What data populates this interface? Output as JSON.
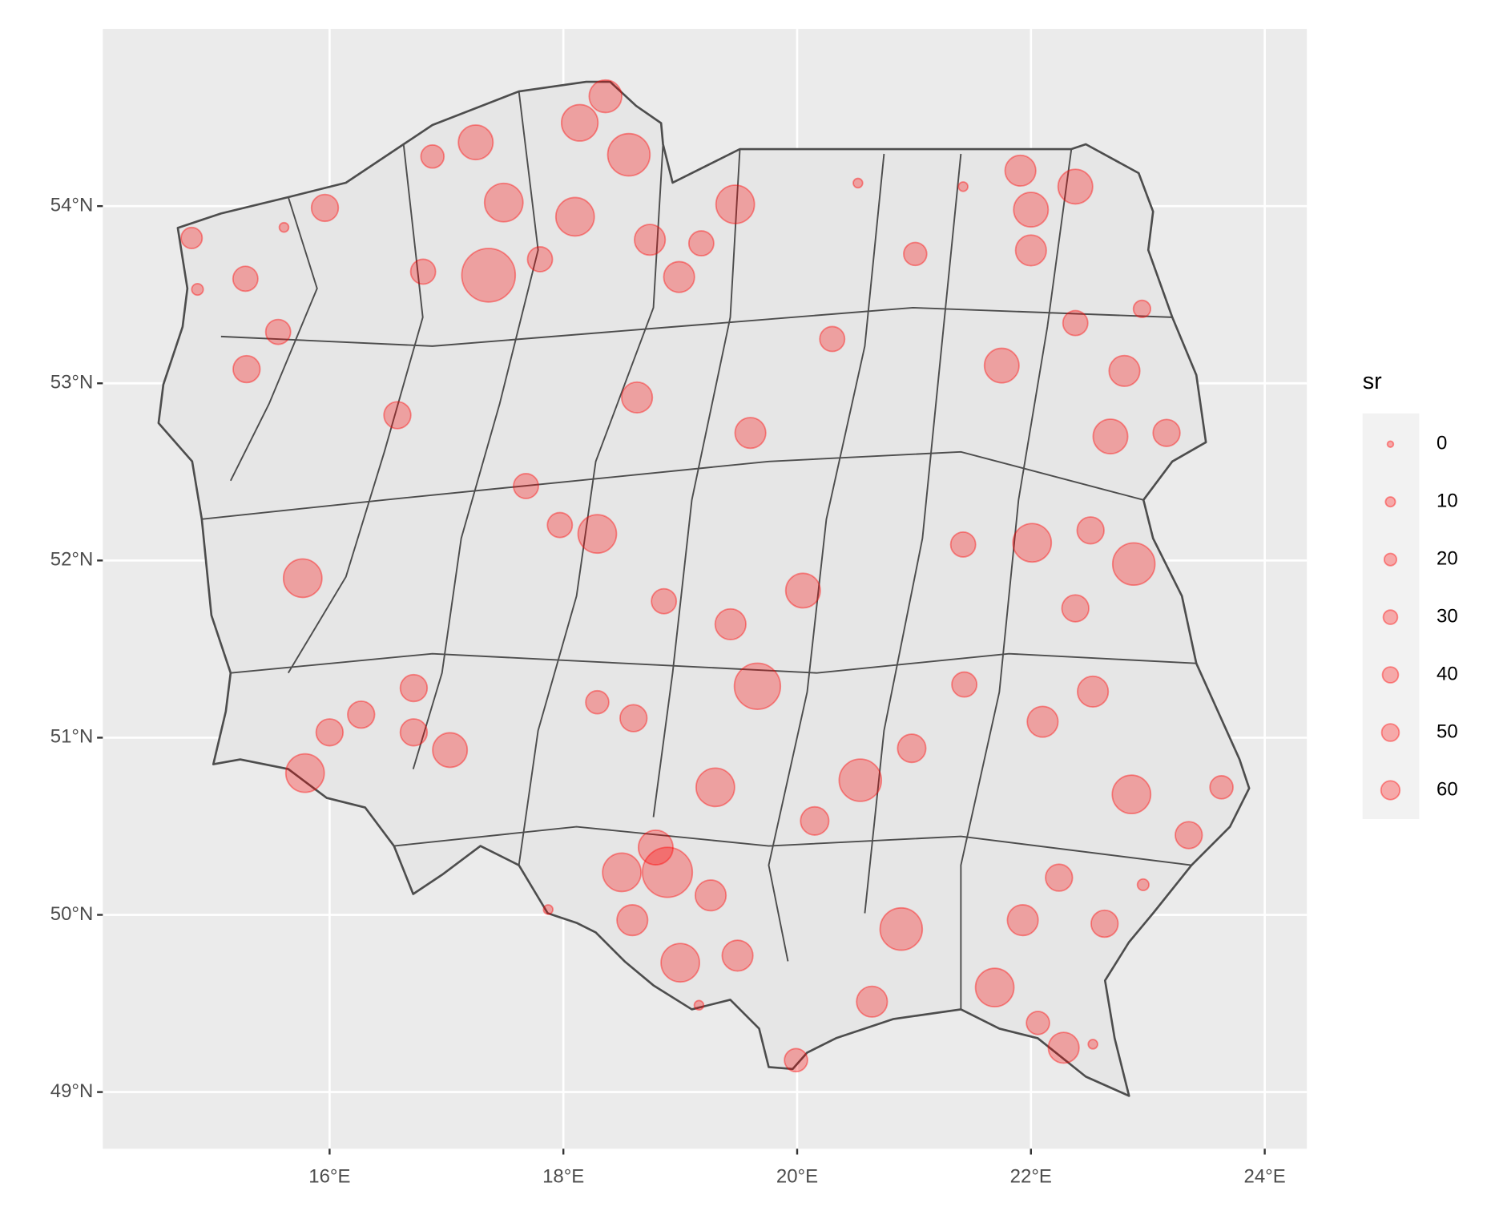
{
  "chart_data": {
    "type": "map",
    "xlim": [
      14.06,
      24.36
    ],
    "ylim": [
      48.68,
      55.0
    ],
    "xticks": [
      {
        "value": 16,
        "label": "16°E"
      },
      {
        "value": 18,
        "label": "18°E"
      },
      {
        "value": 20,
        "label": "20°E"
      },
      {
        "value": 22,
        "label": "22°E"
      },
      {
        "value": 24,
        "label": "24°E"
      }
    ],
    "yticks": [
      {
        "value": 49,
        "label": "49°N"
      },
      {
        "value": 50,
        "label": "50°N"
      },
      {
        "value": 51,
        "label": "51°N"
      },
      {
        "value": 52,
        "label": "52°N"
      },
      {
        "value": 53,
        "label": "53°N"
      },
      {
        "value": 54,
        "label": "54°N"
      }
    ],
    "grid": true,
    "color": "red",
    "alpha": 0.3,
    "legend": {
      "title": "sr",
      "values": [
        0,
        10,
        20,
        30,
        40,
        50,
        60
      ]
    },
    "lon": [
      17.36,
      17.49,
      18.14,
      18.36,
      18.56,
      18.1,
      19.47,
      17.25,
      22.0,
      22.38,
      21.91,
      22.0,
      18.99,
      22.68,
      22.01,
      22.88,
      21.75,
      22.8,
      18.29,
      18.63,
      19.6,
      15.77,
      20.05,
      19.43,
      19.66,
      15.79,
      17.03,
      16.27,
      19.3,
      18.89,
      18.5,
      18.79,
      19.0,
      18.59,
      19.26,
      19.49,
      20.54,
      20.89,
      21.69,
      20.64,
      22.86,
      22.53,
      22.1,
      21.93,
      22.28,
      22.63,
      23.35,
      23.16,
      22.51,
      22.38,
      22.24,
      16.58,
      15.29,
      15.28,
      15.56,
      16.8,
      15.96,
      16.88,
      17.8,
      18.74,
      19.18,
      20.3,
      21.01,
      22.38,
      17.97,
      17.68,
      16.72,
      16.72,
      16.0,
      18.6,
      18.29,
      18.86,
      21.42,
      21.43,
      20.98,
      20.15,
      19.99,
      22.06,
      23.63,
      22.95,
      20.52,
      21.42,
      14.87,
      14.82,
      22.96,
      22.53,
      19.16,
      17.87,
      15.61
    ],
    "lat": [
      53.61,
      54.02,
      54.47,
      54.62,
      54.29,
      53.94,
      54.01,
      54.36,
      53.98,
      54.11,
      54.2,
      53.75,
      53.6,
      52.7,
      52.1,
      51.98,
      53.1,
      53.07,
      52.15,
      52.92,
      52.72,
      51.9,
      51.83,
      51.64,
      51.29,
      50.8,
      50.93,
      51.13,
      50.72,
      50.24,
      50.24,
      50.38,
      49.73,
      49.97,
      50.11,
      49.77,
      50.76,
      49.92,
      49.59,
      49.51,
      50.68,
      51.26,
      51.09,
      49.97,
      49.25,
      49.95,
      50.45,
      52.72,
      52.17,
      51.73,
      50.21,
      52.82,
      53.08,
      53.59,
      53.29,
      53.63,
      53.99,
      54.28,
      53.7,
      53.81,
      53.79,
      53.25,
      53.73,
      53.34,
      52.2,
      52.42,
      51.28,
      51.03,
      51.03,
      51.11,
      51.2,
      51.77,
      52.09,
      51.3,
      50.94,
      50.53,
      49.18,
      49.39,
      50.72,
      53.42,
      54.13,
      54.11,
      53.53,
      53.82,
      50.17,
      49.27,
      49.49,
      50.03,
      53.88
    ],
    "sr": [
      190,
      96,
      86,
      68,
      117,
      96,
      96,
      77,
      77,
      77,
      60,
      60,
      60,
      77,
      96,
      117,
      77,
      60,
      96,
      60,
      60,
      96,
      77,
      60,
      140,
      96,
      77,
      45,
      96,
      165,
      96,
      77,
      96,
      60,
      60,
      60,
      117,
      117,
      96,
      60,
      96,
      60,
      60,
      60,
      60,
      45,
      45,
      45,
      45,
      45,
      45,
      45,
      45,
      38,
      38,
      38,
      45,
      32,
      38,
      60,
      38,
      38,
      32,
      38,
      38,
      38,
      45,
      45,
      45,
      45,
      32,
      38,
      38,
      38,
      50,
      50,
      32,
      32,
      32,
      16,
      2,
      2,
      5,
      26,
      5,
      2,
      2,
      2,
      2
    ]
  }
}
